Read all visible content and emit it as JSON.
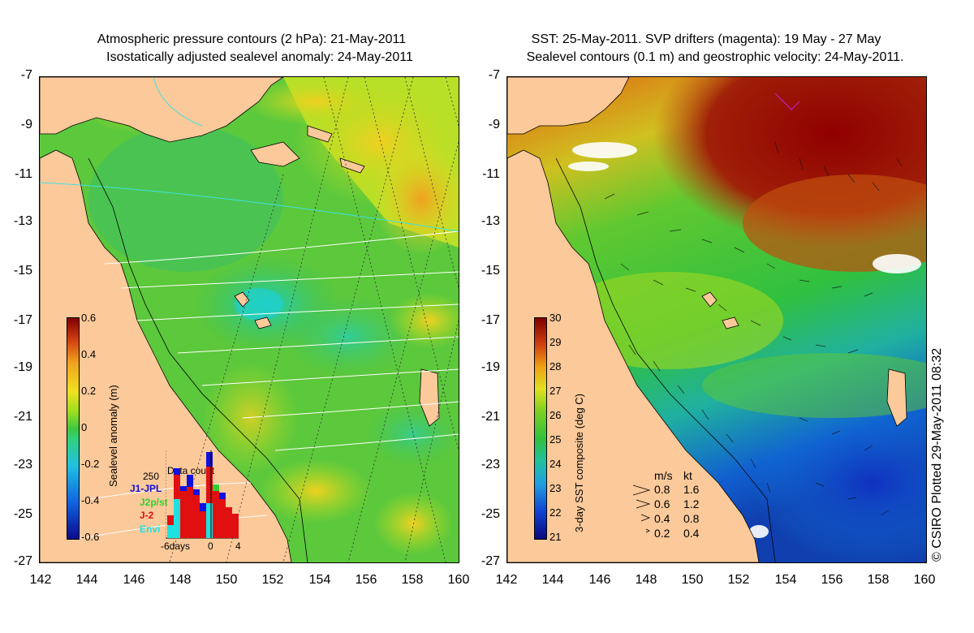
{
  "left_panel": {
    "title_line1": "Atmospheric pressure contours (2 hPa): 21-May-2011",
    "title_line2": "Isostatically adjusted sealevel anomaly: 24-May-2011",
    "colorbar": {
      "label": "Sealevel anomaly (m)",
      "ticks": [
        "0.6",
        "0.4",
        "0.2",
        "0",
        "-0.2",
        "-0.4",
        "-0.6"
      ]
    },
    "data_count": {
      "title": "Data count",
      "max_label": "250",
      "legend": [
        {
          "name": "J1-JPL",
          "color": "#1010e0"
        },
        {
          "name": "J2p/st",
          "color": "#30d030"
        },
        {
          "name": "J-2",
          "color": "#e01010"
        },
        {
          "name": "Envi",
          "color": "#20e0e0"
        }
      ],
      "x_labels": [
        "-6days",
        "0",
        "4"
      ]
    }
  },
  "right_panel": {
    "title_line1": "SST: 25-May-2011. SVP drifters (magenta): 19 May - 27 May",
    "title_line2": "Sealevel contours (0.1 m) and geostrophic velocity: 24-May-2011.",
    "colorbar": {
      "label": "3-day SST composite (deg C)",
      "ticks": [
        "30",
        "29",
        "28",
        "27",
        "26",
        "25",
        "24",
        "23",
        "22",
        "21"
      ]
    },
    "velocity_key": {
      "header_ms": "m/s",
      "header_kt": "kt",
      "rows": [
        {
          "ms": "0.8",
          "kt": "1.6"
        },
        {
          "ms": "0.6",
          "kt": "1.2"
        },
        {
          "ms": "0.4",
          "kt": "0.8"
        },
        {
          "ms": "0.2",
          "kt": "0.4"
        }
      ]
    }
  },
  "axes": {
    "y_ticks": [
      "-7",
      "-9",
      "-11",
      "-13",
      "-15",
      "-17",
      "-19",
      "-21",
      "-23",
      "-25",
      "-27"
    ],
    "x_ticks": [
      "142",
      "144",
      "146",
      "148",
      "150",
      "152",
      "154",
      "156",
      "158",
      "160"
    ]
  },
  "credit": "© CSIRO Plotted 29-May-2011 08:32",
  "colors": {
    "land": "#fcc99a",
    "sla_colormap": [
      "#0a0a8a",
      "#1060e0",
      "#20c0e0",
      "#30d080",
      "#40c840",
      "#a0e020",
      "#f0e020",
      "#f0a020",
      "#d04010",
      "#800000"
    ],
    "sst_colormap": [
      "#0a0a80",
      "#1040d0",
      "#20a0e0",
      "#20c0a0",
      "#30c040",
      "#80d020",
      "#e0e020",
      "#f0a010",
      "#d04010",
      "#800000"
    ]
  }
}
